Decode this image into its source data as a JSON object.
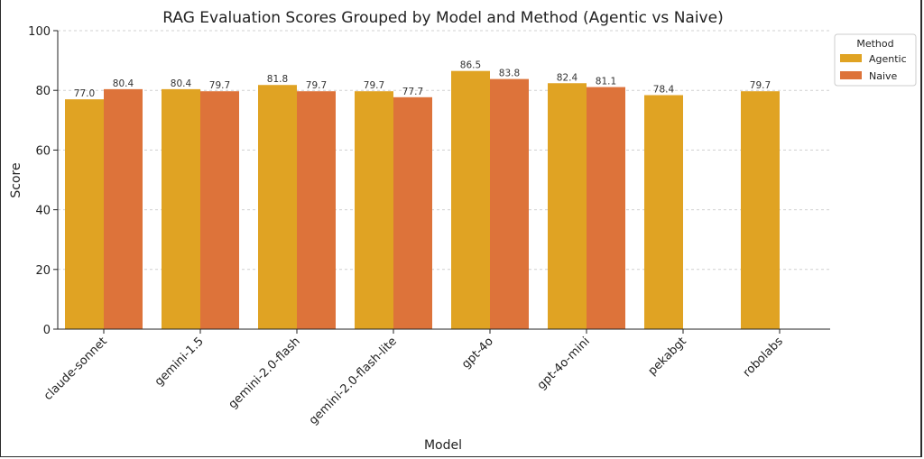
{
  "chart_data": {
    "type": "bar",
    "title": "RAG Evaluation Scores Grouped by Model and Method (Agentic vs Naive)",
    "xlabel": "Model",
    "ylabel": "Score",
    "ylim": [
      0,
      100
    ],
    "yticks": [
      "0",
      "20",
      "40",
      "60",
      "80",
      "100"
    ],
    "grid": true,
    "legend": {
      "title": "Method",
      "position": "top-right"
    },
    "categories": [
      "claude-sonnet",
      "gemini-1.5",
      "gemini-2.0-flash",
      "gemini-2.0-flash-lite",
      "gpt-4o",
      "gpt-4o-mini",
      "pekabgt",
      "robolabs"
    ],
    "series": [
      {
        "name": "Agentic",
        "color": "#e0a323",
        "values": [
          77.0,
          80.4,
          81.8,
          79.7,
          86.5,
          82.4,
          78.4,
          79.7
        ],
        "labels": [
          "77.0",
          "80.4",
          "81.8",
          "79.7",
          "86.5",
          "82.4",
          "78.4",
          "79.7"
        ]
      },
      {
        "name": "Naive",
        "color": "#dd733a",
        "values": [
          80.4,
          79.7,
          79.7,
          77.7,
          83.8,
          81.1,
          null,
          null
        ],
        "labels": [
          "80.4",
          "79.7",
          "79.7",
          "77.7",
          "83.8",
          "81.1",
          null,
          null
        ]
      }
    ]
  }
}
